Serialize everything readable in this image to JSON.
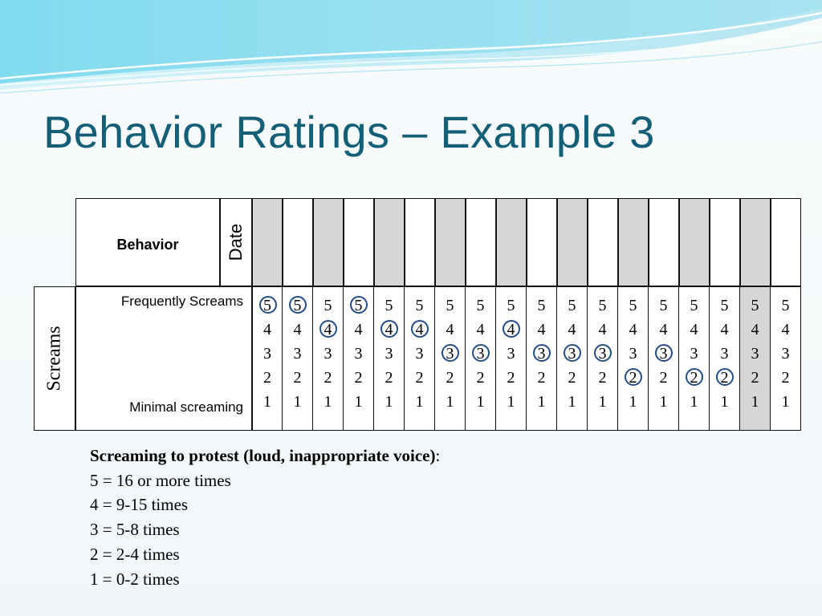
{
  "title": "Behavior Ratings – Example 3",
  "table": {
    "header": {
      "behavior": "Behavior",
      "date": "Date"
    },
    "category": "Screams",
    "criteria": {
      "top": "Frequently Screams",
      "bottom": "Minimal screaming"
    },
    "scale": [
      "5",
      "4",
      "3",
      "2",
      "1"
    ],
    "circled": [
      5,
      5,
      4,
      5,
      4,
      4,
      3,
      3,
      4,
      3,
      3,
      3,
      2,
      3,
      2,
      2,
      null,
      null
    ]
  },
  "legend": {
    "title": "Screaming to protest (loud, inappropriate voice)",
    "title_suffix": ":",
    "items": [
      "5 = 16 or more times",
      "4 = 9-15 times",
      "3 = 5-8 times",
      "2 = 2-4 times",
      "1 = 0-2 times"
    ]
  },
  "colors": {
    "title": "#145f78",
    "circle": "#244d8a",
    "shade": "#d6d6d6"
  }
}
